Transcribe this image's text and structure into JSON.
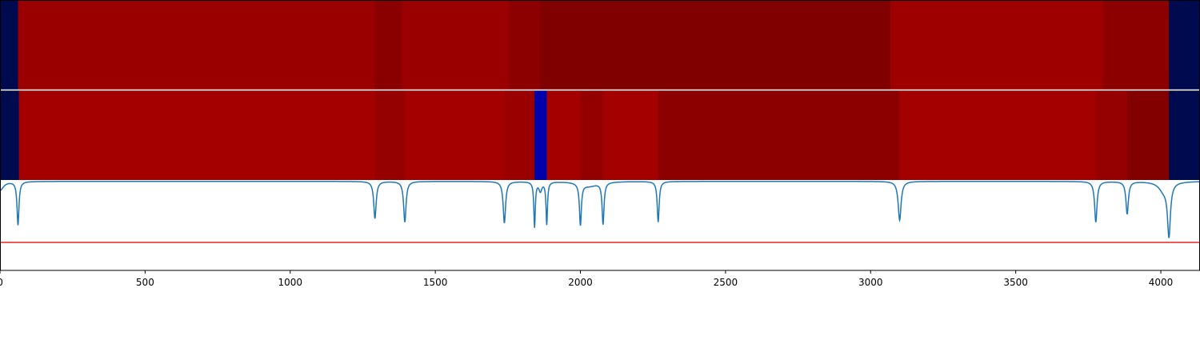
{
  "chart_data": {
    "type": "heatmap",
    "xlim": [
      0,
      4135
    ],
    "x_ticks": [
      0,
      500,
      1000,
      1500,
      2000,
      2500,
      3000,
      3500,
      4000
    ],
    "x_tick_labels": [
      "0",
      "500",
      "1000",
      "1500",
      "2000",
      "2500",
      "3000",
      "3500",
      "4000"
    ],
    "colormap": "seismic",
    "panels": [
      {
        "name": "",
        "segments": [
          {
            "x0": 0,
            "x1": 62,
            "color": "#000a4f"
          },
          {
            "x0": 62,
            "x1": 1292,
            "color": "#9a0000"
          },
          {
            "x0": 1292,
            "x1": 1385,
            "color": "#8a0000"
          },
          {
            "x0": 1385,
            "x1": 1755,
            "color": "#9a0000"
          },
          {
            "x0": 1755,
            "x1": 1860,
            "color": "#8c0000"
          },
          {
            "x0": 1860,
            "x1": 3068,
            "color": "#800000"
          },
          {
            "x0": 3068,
            "x1": 3800,
            "color": "#9e0000"
          },
          {
            "x0": 3800,
            "x1": 4028,
            "color": "#8c0000"
          },
          {
            "x0": 4028,
            "x1": 4135,
            "color": "#000a4f"
          }
        ]
      },
      {
        "name": "",
        "segments": [
          {
            "x0": 0,
            "x1": 65,
            "color": "#000a4f"
          },
          {
            "x0": 65,
            "x1": 1292,
            "color": "#a50000"
          },
          {
            "x0": 1292,
            "x1": 1395,
            "color": "#950000"
          },
          {
            "x0": 1395,
            "x1": 1738,
            "color": "#a50000"
          },
          {
            "x0": 1738,
            "x1": 1842,
            "color": "#9a0000"
          },
          {
            "x0": 1842,
            "x1": 1884,
            "color": "#0000aa"
          },
          {
            "x0": 1884,
            "x1": 2000,
            "color": "#a50000"
          },
          {
            "x0": 2000,
            "x1": 2078,
            "color": "#920000"
          },
          {
            "x0": 2078,
            "x1": 2268,
            "color": "#a50000"
          },
          {
            "x0": 2268,
            "x1": 3100,
            "color": "#8c0000"
          },
          {
            "x0": 3100,
            "x1": 3776,
            "color": "#a50000"
          },
          {
            "x0": 3776,
            "x1": 3884,
            "color": "#950000"
          },
          {
            "x0": 3884,
            "x1": 4028,
            "color": "#820000"
          },
          {
            "x0": 4028,
            "x1": 4135,
            "color": "#000a4f"
          }
        ]
      }
    ],
    "line_panel": {
      "ylim": [
        0,
        1
      ],
      "line_color": "#1f77b4",
      "threshold": {
        "y": 0.31,
        "color": "#e8231c"
      },
      "baseline_y": 0.985,
      "dips": [
        {
          "x": 0,
          "depth": 0.1,
          "width": 14
        },
        {
          "x": 62,
          "depth": 0.48,
          "width": 4
        },
        {
          "x": 1292,
          "depth": 0.41,
          "width": 5
        },
        {
          "x": 1395,
          "depth": 0.45,
          "width": 5
        },
        {
          "x": 1738,
          "depth": 0.46,
          "width": 5
        },
        {
          "x": 1842,
          "depth": 0.5,
          "width": 3
        },
        {
          "x": 1862,
          "depth": 0.1,
          "width": 6
        },
        {
          "x": 1884,
          "depth": 0.47,
          "width": 3
        },
        {
          "x": 2000,
          "depth": 0.46,
          "width": 4
        },
        {
          "x": 2030,
          "depth": 0.05,
          "width": 35
        },
        {
          "x": 2078,
          "depth": 0.46,
          "width": 4
        },
        {
          "x": 2268,
          "depth": 0.45,
          "width": 4
        },
        {
          "x": 3100,
          "depth": 0.43,
          "width": 6
        },
        {
          "x": 3776,
          "depth": 0.45,
          "width": 5
        },
        {
          "x": 3884,
          "depth": 0.36,
          "width": 5
        },
        {
          "x": 4028,
          "depth": 0.57,
          "width": 6
        },
        {
          "x": 4010,
          "depth": 0.1,
          "width": 20
        }
      ]
    }
  }
}
